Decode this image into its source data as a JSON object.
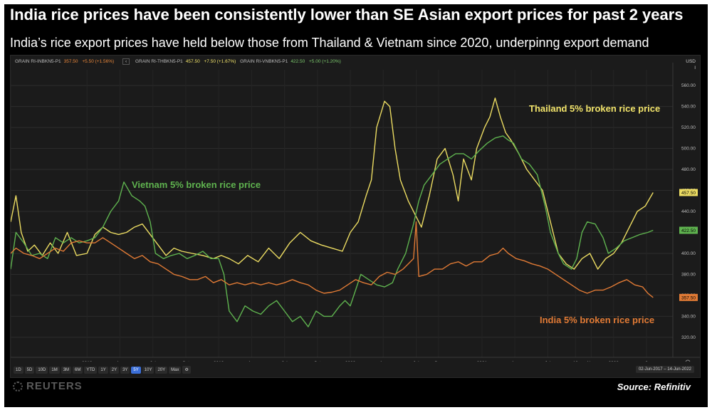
{
  "header": {
    "title": "India rice prices have been consistently lower than SE Asian export prices for past 2 years",
    "subtitle": "India’s rice export prices have held below those from Thailand & Vietnam since 2020, underpinng export demand"
  },
  "legend_bar": {
    "india": {
      "code": "GRAIN RI-INBKN5-P1",
      "value": "357.50",
      "change": "+5.50 (+1.56%)"
    },
    "separator": "‹",
    "thailand": {
      "code": "GRAIN RI-THBKN5-P1",
      "value": "457.50",
      "change": "+7.50 (+1.67%)"
    },
    "vietnam": {
      "code": "GRAIN RI-VNBKN5-P1",
      "value": "422.50",
      "change": "+5.00 (+1.20%)"
    }
  },
  "currency": {
    "label": "USD",
    "sub": "I"
  },
  "toolbar": {
    "ranges": [
      "1D",
      "5D",
      "10D",
      "1M",
      "3M",
      "6M",
      "YTD",
      "1Y",
      "2Y",
      "3Y",
      "5Y",
      "10Y",
      "20Y",
      "Max"
    ],
    "active": "5Y",
    "date_range": "02-Jun-2017 – 14-Jun-2022"
  },
  "branding": {
    "reuters": "REUTERS",
    "source": "Source: Refinitiv"
  },
  "colors": {
    "india": "#e07a35",
    "thailand": "#ecdc62",
    "vietnam": "#5fb34f",
    "background": "#1b1b1b"
  },
  "chart_data": {
    "type": "line",
    "title": "India rice prices have been consistently lower than SE Asian export prices for past 2 years",
    "subtitle": "India’s rice export prices have held below those from Thailand & Vietnam since 2020, underpinng export demand",
    "ylim": [
      305,
      575
    ],
    "y_ticks": [
      320,
      340,
      360,
      380,
      400,
      420,
      440,
      460,
      480,
      500,
      520,
      540,
      560
    ],
    "x_range": [
      2017.42,
      2022.45
    ],
    "x_ticks": [
      {
        "label": "Jun",
        "t": 2017.42
      },
      {
        "label": "2018",
        "t": 2018.0
      },
      {
        "label": "Apr",
        "t": 2018.25
      },
      {
        "label": "Jul",
        "t": 2018.5
      },
      {
        "label": "Oct",
        "t": 2018.75
      },
      {
        "label": "2019",
        "t": 2019.0
      },
      {
        "label": "Apr",
        "t": 2019.25
      },
      {
        "label": "Jul",
        "t": 2019.5
      },
      {
        "label": "Oct",
        "t": 2019.75
      },
      {
        "label": "2020",
        "t": 2020.0
      },
      {
        "label": "Apr",
        "t": 2020.25
      },
      {
        "label": "Jul",
        "t": 2020.5
      },
      {
        "label": "Sep",
        "t": 2020.67
      },
      {
        "label": "2021",
        "t": 2021.0
      },
      {
        "label": "Apr",
        "t": 2021.25
      },
      {
        "label": "Jul",
        "t": 2021.5
      },
      {
        "label": "16",
        "t": 2021.71
      },
      {
        "label": "Nov",
        "t": 2021.83
      },
      {
        "label": "2022",
        "t": 2022.0
      },
      {
        "label": "3",
        "t": 2022.25
      }
    ],
    "series": [
      {
        "key": "thailand",
        "name": "Thailand 5% broken rice price",
        "last": "457.50",
        "points": [
          [
            2017.42,
            430
          ],
          [
            2017.46,
            455
          ],
          [
            2017.5,
            420
          ],
          [
            2017.55,
            402
          ],
          [
            2017.6,
            408
          ],
          [
            2017.66,
            398
          ],
          [
            2017.72,
            410
          ],
          [
            2017.78,
            400
          ],
          [
            2017.85,
            420
          ],
          [
            2017.92,
            398
          ],
          [
            2018.0,
            400
          ],
          [
            2018.06,
            418
          ],
          [
            2018.12,
            425
          ],
          [
            2018.18,
            420
          ],
          [
            2018.24,
            418
          ],
          [
            2018.3,
            420
          ],
          [
            2018.36,
            425
          ],
          [
            2018.42,
            428
          ],
          [
            2018.48,
            418
          ],
          [
            2018.54,
            408
          ],
          [
            2018.6,
            398
          ],
          [
            2018.66,
            405
          ],
          [
            2018.72,
            402
          ],
          [
            2018.8,
            400
          ],
          [
            2018.88,
            398
          ],
          [
            2018.96,
            395
          ],
          [
            2019.02,
            398
          ],
          [
            2019.08,
            395
          ],
          [
            2019.15,
            390
          ],
          [
            2019.22,
            398
          ],
          [
            2019.3,
            392
          ],
          [
            2019.38,
            405
          ],
          [
            2019.46,
            395
          ],
          [
            2019.54,
            410
          ],
          [
            2019.62,
            420
          ],
          [
            2019.7,
            412
          ],
          [
            2019.78,
            408
          ],
          [
            2019.86,
            405
          ],
          [
            2019.94,
            402
          ],
          [
            2020.0,
            420
          ],
          [
            2020.06,
            430
          ],
          [
            2020.12,
            455
          ],
          [
            2020.16,
            470
          ],
          [
            2020.2,
            520
          ],
          [
            2020.26,
            545
          ],
          [
            2020.3,
            540
          ],
          [
            2020.34,
            500
          ],
          [
            2020.38,
            470
          ],
          [
            2020.44,
            450
          ],
          [
            2020.5,
            435
          ],
          [
            2020.54,
            425
          ],
          [
            2020.6,
            455
          ],
          [
            2020.66,
            490
          ],
          [
            2020.72,
            500
          ],
          [
            2020.78,
            475
          ],
          [
            2020.82,
            450
          ],
          [
            2020.86,
            490
          ],
          [
            2020.92,
            470
          ],
          [
            2020.96,
            500
          ],
          [
            2021.02,
            520
          ],
          [
            2021.06,
            530
          ],
          [
            2021.1,
            548
          ],
          [
            2021.14,
            530
          ],
          [
            2021.18,
            515
          ],
          [
            2021.22,
            508
          ],
          [
            2021.28,
            495
          ],
          [
            2021.34,
            480
          ],
          [
            2021.4,
            470
          ],
          [
            2021.46,
            460
          ],
          [
            2021.52,
            430
          ],
          [
            2021.58,
            400
          ],
          [
            2021.64,
            390
          ],
          [
            2021.7,
            385
          ],
          [
            2021.76,
            395
          ],
          [
            2021.82,
            400
          ],
          [
            2021.88,
            385
          ],
          [
            2021.94,
            395
          ],
          [
            2022.0,
            400
          ],
          [
            2022.06,
            410
          ],
          [
            2022.12,
            425
          ],
          [
            2022.18,
            440
          ],
          [
            2022.24,
            445
          ],
          [
            2022.3,
            458
          ]
        ]
      },
      {
        "key": "vietnam",
        "name": "Vietnam 5% broken rice price",
        "last": "422.50",
        "points": [
          [
            2017.42,
            385
          ],
          [
            2017.46,
            420
          ],
          [
            2017.52,
            410
          ],
          [
            2017.58,
            398
          ],
          [
            2017.64,
            400
          ],
          [
            2017.7,
            395
          ],
          [
            2017.76,
            415
          ],
          [
            2017.82,
            410
          ],
          [
            2017.88,
            415
          ],
          [
            2017.94,
            410
          ],
          [
            2018.0,
            412
          ],
          [
            2018.06,
            415
          ],
          [
            2018.12,
            425
          ],
          [
            2018.18,
            440
          ],
          [
            2018.24,
            450
          ],
          [
            2018.28,
            468
          ],
          [
            2018.34,
            455
          ],
          [
            2018.4,
            450
          ],
          [
            2018.44,
            445
          ],
          [
            2018.48,
            430
          ],
          [
            2018.52,
            400
          ],
          [
            2018.58,
            395
          ],
          [
            2018.64,
            398
          ],
          [
            2018.7,
            400
          ],
          [
            2018.76,
            395
          ],
          [
            2018.82,
            398
          ],
          [
            2018.88,
            402
          ],
          [
            2018.94,
            395
          ],
          [
            2019.0,
            395
          ],
          [
            2019.04,
            380
          ],
          [
            2019.08,
            345
          ],
          [
            2019.14,
            335
          ],
          [
            2019.2,
            350
          ],
          [
            2019.26,
            345
          ],
          [
            2019.32,
            342
          ],
          [
            2019.38,
            350
          ],
          [
            2019.44,
            355
          ],
          [
            2019.5,
            345
          ],
          [
            2019.56,
            335
          ],
          [
            2019.62,
            340
          ],
          [
            2019.68,
            330
          ],
          [
            2019.74,
            345
          ],
          [
            2019.8,
            340
          ],
          [
            2019.86,
            340
          ],
          [
            2019.92,
            350
          ],
          [
            2019.96,
            355
          ],
          [
            2020.0,
            350
          ],
          [
            2020.04,
            365
          ],
          [
            2020.08,
            380
          ],
          [
            2020.14,
            375
          ],
          [
            2020.2,
            370
          ],
          [
            2020.26,
            368
          ],
          [
            2020.32,
            372
          ],
          [
            2020.36,
            385
          ],
          [
            2020.42,
            400
          ],
          [
            2020.48,
            428
          ],
          [
            2020.52,
            450
          ],
          [
            2020.56,
            465
          ],
          [
            2020.62,
            475
          ],
          [
            2020.68,
            485
          ],
          [
            2020.74,
            490
          ],
          [
            2020.8,
            495
          ],
          [
            2020.86,
            495
          ],
          [
            2020.92,
            490
          ],
          [
            2020.98,
            498
          ],
          [
            2021.04,
            505
          ],
          [
            2021.1,
            510
          ],
          [
            2021.16,
            512
          ],
          [
            2021.2,
            508
          ],
          [
            2021.24,
            505
          ],
          [
            2021.3,
            490
          ],
          [
            2021.36,
            485
          ],
          [
            2021.42,
            475
          ],
          [
            2021.48,
            445
          ],
          [
            2021.52,
            420
          ],
          [
            2021.58,
            400
          ],
          [
            2021.62,
            390
          ],
          [
            2021.68,
            385
          ],
          [
            2021.72,
            395
          ],
          [
            2021.76,
            420
          ],
          [
            2021.8,
            430
          ],
          [
            2021.86,
            428
          ],
          [
            2021.92,
            415
          ],
          [
            2021.96,
            400
          ],
          [
            2022.02,
            405
          ],
          [
            2022.08,
            412
          ],
          [
            2022.14,
            415
          ],
          [
            2022.2,
            418
          ],
          [
            2022.26,
            420
          ],
          [
            2022.3,
            422
          ]
        ]
      },
      {
        "key": "india",
        "name": "India 5% broken rice price",
        "last": "357.50",
        "points": [
          [
            2017.42,
            400
          ],
          [
            2017.46,
            405
          ],
          [
            2017.52,
            400
          ],
          [
            2017.58,
            398
          ],
          [
            2017.64,
            395
          ],
          [
            2017.7,
            400
          ],
          [
            2017.76,
            405
          ],
          [
            2017.82,
            402
          ],
          [
            2017.88,
            410
          ],
          [
            2017.94,
            412
          ],
          [
            2018.0,
            410
          ],
          [
            2018.06,
            410
          ],
          [
            2018.12,
            415
          ],
          [
            2018.18,
            410
          ],
          [
            2018.24,
            405
          ],
          [
            2018.3,
            400
          ],
          [
            2018.36,
            395
          ],
          [
            2018.42,
            398
          ],
          [
            2018.48,
            392
          ],
          [
            2018.54,
            390
          ],
          [
            2018.6,
            385
          ],
          [
            2018.66,
            380
          ],
          [
            2018.72,
            378
          ],
          [
            2018.78,
            375
          ],
          [
            2018.84,
            375
          ],
          [
            2018.9,
            378
          ],
          [
            2018.96,
            372
          ],
          [
            2019.02,
            375
          ],
          [
            2019.08,
            370
          ],
          [
            2019.14,
            372
          ],
          [
            2019.2,
            370
          ],
          [
            2019.26,
            372
          ],
          [
            2019.32,
            370
          ],
          [
            2019.38,
            372
          ],
          [
            2019.44,
            370
          ],
          [
            2019.5,
            372
          ],
          [
            2019.56,
            375
          ],
          [
            2019.62,
            372
          ],
          [
            2019.68,
            370
          ],
          [
            2019.74,
            365
          ],
          [
            2019.8,
            362
          ],
          [
            2019.86,
            363
          ],
          [
            2019.92,
            365
          ],
          [
            2019.98,
            370
          ],
          [
            2020.04,
            375
          ],
          [
            2020.1,
            372
          ],
          [
            2020.16,
            370
          ],
          [
            2020.22,
            378
          ],
          [
            2020.28,
            382
          ],
          [
            2020.34,
            380
          ],
          [
            2020.4,
            385
          ],
          [
            2020.44,
            390
          ],
          [
            2020.48,
            395
          ],
          [
            2020.5,
            430
          ],
          [
            2020.52,
            378
          ],
          [
            2020.58,
            380
          ],
          [
            2020.64,
            385
          ],
          [
            2020.7,
            385
          ],
          [
            2020.76,
            390
          ],
          [
            2020.82,
            392
          ],
          [
            2020.88,
            388
          ],
          [
            2020.94,
            392
          ],
          [
            2021.0,
            392
          ],
          [
            2021.06,
            398
          ],
          [
            2021.12,
            400
          ],
          [
            2021.16,
            405
          ],
          [
            2021.2,
            400
          ],
          [
            2021.26,
            395
          ],
          [
            2021.32,
            393
          ],
          [
            2021.38,
            390
          ],
          [
            2021.44,
            388
          ],
          [
            2021.5,
            385
          ],
          [
            2021.56,
            380
          ],
          [
            2021.62,
            375
          ],
          [
            2021.68,
            370
          ],
          [
            2021.74,
            365
          ],
          [
            2021.8,
            362
          ],
          [
            2021.86,
            365
          ],
          [
            2021.92,
            365
          ],
          [
            2021.98,
            368
          ],
          [
            2022.04,
            372
          ],
          [
            2022.1,
            375
          ],
          [
            2022.16,
            370
          ],
          [
            2022.22,
            368
          ],
          [
            2022.26,
            362
          ],
          [
            2022.3,
            358
          ]
        ]
      }
    ]
  }
}
